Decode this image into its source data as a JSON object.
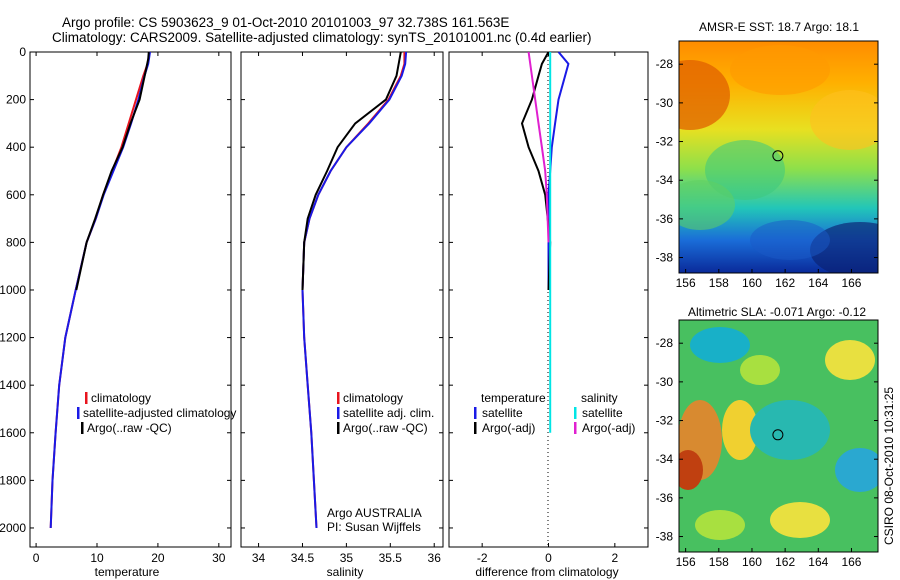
{
  "figure": {
    "title_line1": "Argo profile: CS 5903623_9 01-Oct-2010 20101003_97 32.738S 161.563E",
    "title_line2": "Climatology: CARS2009. Satellite-adjusted climatology: synTS_20101001.nc (0.4d earlier)",
    "side_note": "CSIRO 08-Oct-2010 10:31:25"
  },
  "chart_data": [
    {
      "id": "temperature",
      "type": "line",
      "xlabel": "temperature",
      "ylabel": "",
      "xlim": [
        -1,
        32
      ],
      "ylim": [
        2080,
        0
      ],
      "xticks": [
        "0",
        "10",
        "20",
        "30"
      ],
      "yticks": [
        "0",
        "200",
        "400",
        "600",
        "800",
        "1000",
        "1200",
        "1400",
        "1600",
        "1800",
        "2000"
      ],
      "legend": [
        "climatology",
        "satellite-adjusted climatology",
        "Argo(..raw -QC)"
      ],
      "series": [
        {
          "name": "climatology",
          "color": "#e8141e",
          "x": [
            18.6,
            18.3,
            17.6,
            16.4,
            15.2,
            14.0,
            12.5,
            11.0,
            9.8,
            8.3,
            6.5,
            4.8,
            3.8,
            3.2,
            2.7,
            2.4
          ],
          "y": [
            0,
            50,
            100,
            200,
            300,
            400,
            500,
            600,
            700,
            800,
            1000,
            1200,
            1400,
            1600,
            1800,
            2000
          ]
        },
        {
          "name": "satellite-adjusted climatology",
          "color": "#1a1ae6",
          "x": [
            18.7,
            18.4,
            17.8,
            16.8,
            15.6,
            14.3,
            12.7,
            11.1,
            9.8,
            8.3,
            6.5,
            4.8,
            3.8,
            3.2,
            2.7,
            2.4
          ],
          "y": [
            0,
            50,
            100,
            200,
            300,
            400,
            500,
            600,
            700,
            800,
            1000,
            1200,
            1400,
            1600,
            1800,
            2000
          ]
        },
        {
          "name": "Argo(..raw -QC)",
          "color": "#000000",
          "x": [
            18.5,
            18.4,
            18.0,
            17.0,
            15.5,
            14.2,
            12.4,
            11.0,
            9.7,
            8.3,
            6.6
          ],
          "y": [
            0,
            30,
            80,
            200,
            300,
            400,
            500,
            600,
            700,
            800,
            1000
          ]
        }
      ]
    },
    {
      "id": "salinity",
      "type": "line",
      "xlabel": "salinity",
      "ylabel": "",
      "xlim": [
        33.8,
        36.1
      ],
      "ylim": [
        2080,
        0
      ],
      "xticks": [
        "34",
        "34.5",
        "35",
        "35.5",
        "36"
      ],
      "yticks": [],
      "legend": [
        "climatology",
        "satellite adj. clim.",
        "Argo(..raw -QC)"
      ],
      "notes": [
        "Argo AUSTRALIA",
        "PI: Susan Wijffels"
      ],
      "series": [
        {
          "name": "climatology",
          "color": "#e8141e",
          "x": [
            35.66,
            35.66,
            35.62,
            35.48,
            35.25,
            35.0,
            34.82,
            34.68,
            34.58,
            34.52,
            34.5,
            34.52,
            34.56,
            34.6,
            34.63,
            34.66
          ],
          "y": [
            0,
            50,
            100,
            200,
            300,
            400,
            500,
            600,
            700,
            800,
            1000,
            1200,
            1400,
            1600,
            1800,
            2000
          ]
        },
        {
          "name": "satellite adj. clim.",
          "color": "#1a1ae6",
          "x": [
            35.68,
            35.67,
            35.63,
            35.49,
            35.26,
            35.0,
            34.82,
            34.68,
            34.58,
            34.52,
            34.5,
            34.52,
            34.56,
            34.6,
            34.63,
            34.66
          ],
          "y": [
            0,
            50,
            100,
            200,
            300,
            400,
            500,
            600,
            700,
            800,
            1000,
            1200,
            1400,
            1600,
            1800,
            2000
          ]
        },
        {
          "name": "Argo(..raw -QC)",
          "color": "#000000",
          "x": [
            35.62,
            35.6,
            35.57,
            35.45,
            35.1,
            34.9,
            34.78,
            34.65,
            34.56,
            34.52,
            34.5
          ],
          "y": [
            0,
            40,
            100,
            200,
            300,
            400,
            500,
            600,
            700,
            800,
            1000
          ]
        }
      ]
    },
    {
      "id": "difference",
      "type": "line",
      "xlabel": "difference from climatology",
      "ylabel": "",
      "xlim": [
        -3.0,
        3.0
      ],
      "ylim": [
        2080,
        0
      ],
      "xticks": [
        "-2",
        "0",
        "2"
      ],
      "yticks": [],
      "legend_groups": [
        {
          "title": "temperature",
          "items": [
            "satellite",
            "Argo(-adj)"
          ]
        },
        {
          "title": "salinity",
          "items": [
            "satellite",
            "Argo(-adj)"
          ]
        }
      ],
      "series": [
        {
          "name": "temperature satellite",
          "color": "#1a1ae6",
          "x": [
            0.3,
            0.6,
            0.5,
            0.3,
            0.2,
            0.1,
            0.05,
            0.0,
            0.0,
            0.0
          ],
          "y": [
            0,
            50,
            100,
            200,
            300,
            400,
            500,
            600,
            800,
            1000
          ]
        },
        {
          "name": "temperature Argo(-adj)",
          "color": "#000000",
          "x": [
            0.0,
            -0.2,
            -0.3,
            -0.5,
            -0.8,
            -0.6,
            -0.3,
            -0.1,
            0.05,
            0.0
          ],
          "y": [
            0,
            50,
            100,
            200,
            300,
            400,
            500,
            600,
            800,
            1000
          ]
        },
        {
          "name": "salinity satellite",
          "color": "#00e5e5",
          "x": [
            0.05,
            0.05,
            0.05,
            0.05,
            0.05,
            0.05,
            0.05,
            0.05,
            0.05,
            0.05
          ],
          "y": [
            0,
            100,
            200,
            400,
            600,
            800,
            1000,
            1200,
            1400,
            1600
          ]
        },
        {
          "name": "salinity Argo(-adj)",
          "color": "#e020d0",
          "x": [
            -0.6,
            -0.5,
            -0.4,
            -0.3,
            -0.2,
            -0.1,
            -0.05,
            0.0
          ],
          "y": [
            0,
            100,
            200,
            300,
            400,
            500,
            600,
            800
          ]
        }
      ]
    },
    {
      "id": "sst-map",
      "type": "heatmap",
      "title": "AMSR-E SST: 18.7  Argo: 18.1",
      "xlim": [
        155.6,
        167.6
      ],
      "ylim": [
        -38.8,
        -26.8
      ],
      "xticks": [
        "156",
        "158",
        "160",
        "162",
        "164",
        "166"
      ],
      "yticks": [
        "-28",
        "-30",
        "-32",
        "-34",
        "-36",
        "-38"
      ],
      "marker": {
        "lon": 161.563,
        "lat": -32.738
      }
    },
    {
      "id": "sla-map",
      "type": "heatmap",
      "title": "Altimetric SLA: -0.071  Argo: -0.12",
      "xlim": [
        155.6,
        167.6
      ],
      "ylim": [
        -38.8,
        -26.8
      ],
      "xticks": [
        "156",
        "158",
        "160",
        "162",
        "164",
        "166"
      ],
      "yticks": [
        "-28",
        "-30",
        "-32",
        "-34",
        "-36",
        "-38"
      ],
      "marker": {
        "lon": 161.563,
        "lat": -32.738
      }
    }
  ]
}
